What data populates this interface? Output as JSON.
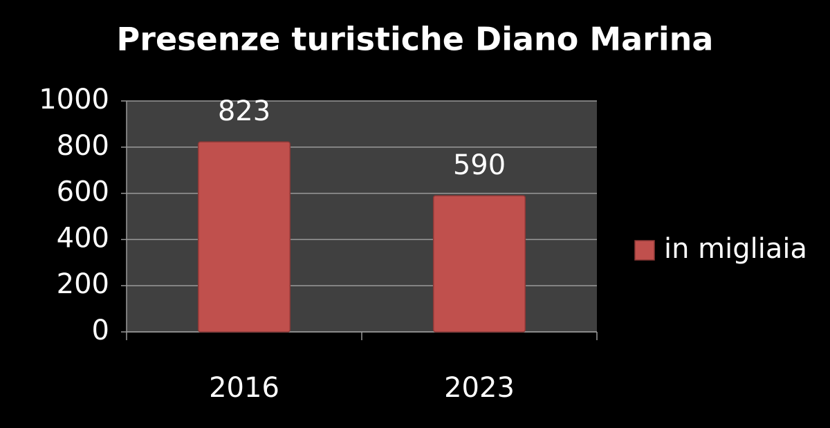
{
  "chart_data": {
    "type": "bar",
    "title": "Presenze turistiche Diano Marina",
    "categories": [
      "2016",
      "2023"
    ],
    "series": [
      {
        "name": "in migliaia",
        "color": "#c0504d",
        "values": [
          823,
          590
        ]
      }
    ],
    "ylim": [
      0,
      1000
    ],
    "yticks": [
      0,
      200,
      400,
      600,
      800,
      1000
    ],
    "grid": true,
    "legend": "right"
  }
}
